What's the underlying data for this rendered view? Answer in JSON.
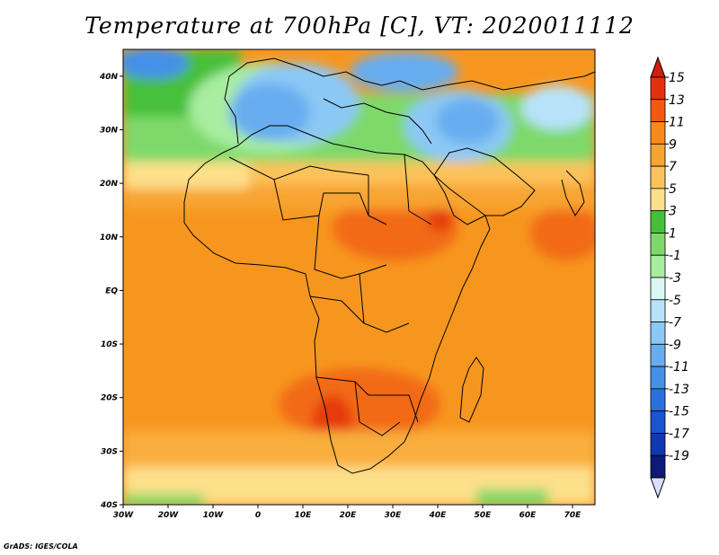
{
  "map": {
    "title": "Temperature at 700hPa [C], VT: 2020011112",
    "lon_labels": [
      "30W",
      "20W",
      "10W",
      "0",
      "10E",
      "20E",
      "30E",
      "40E",
      "50E",
      "60E",
      "70E"
    ],
    "lat_labels": [
      "40N",
      "30N",
      "20N",
      "10N",
      "EQ",
      "10S",
      "20S",
      "30S",
      "40S"
    ],
    "lon_range": [
      -30,
      75
    ],
    "lat_range": [
      -40,
      45
    ],
    "credit": "GrADS: IGES/COLA"
  },
  "colorbar": {
    "labels": [
      "15",
      "13",
      "11",
      "9",
      "7",
      "5",
      "3",
      "1",
      "-1",
      "-3",
      "-5",
      "-7",
      "-9",
      "-11",
      "-13",
      "-15",
      "-17",
      "-19"
    ],
    "colors": [
      "#e53010",
      "#f25a12",
      "#f78a1a",
      "#f8a431",
      "#fbc25c",
      "#fde08a",
      "#46c03a",
      "#7ed96a",
      "#a8eda0",
      "#daf7f4",
      "#b8e2fa",
      "#8cc8f5",
      "#68adf0",
      "#4590e8",
      "#2b70de",
      "#1a55cf",
      "#0f38b2",
      "#0c1a78"
    ],
    "top_color": "#d01e0c",
    "bottom_color": "#ddddff"
  }
}
